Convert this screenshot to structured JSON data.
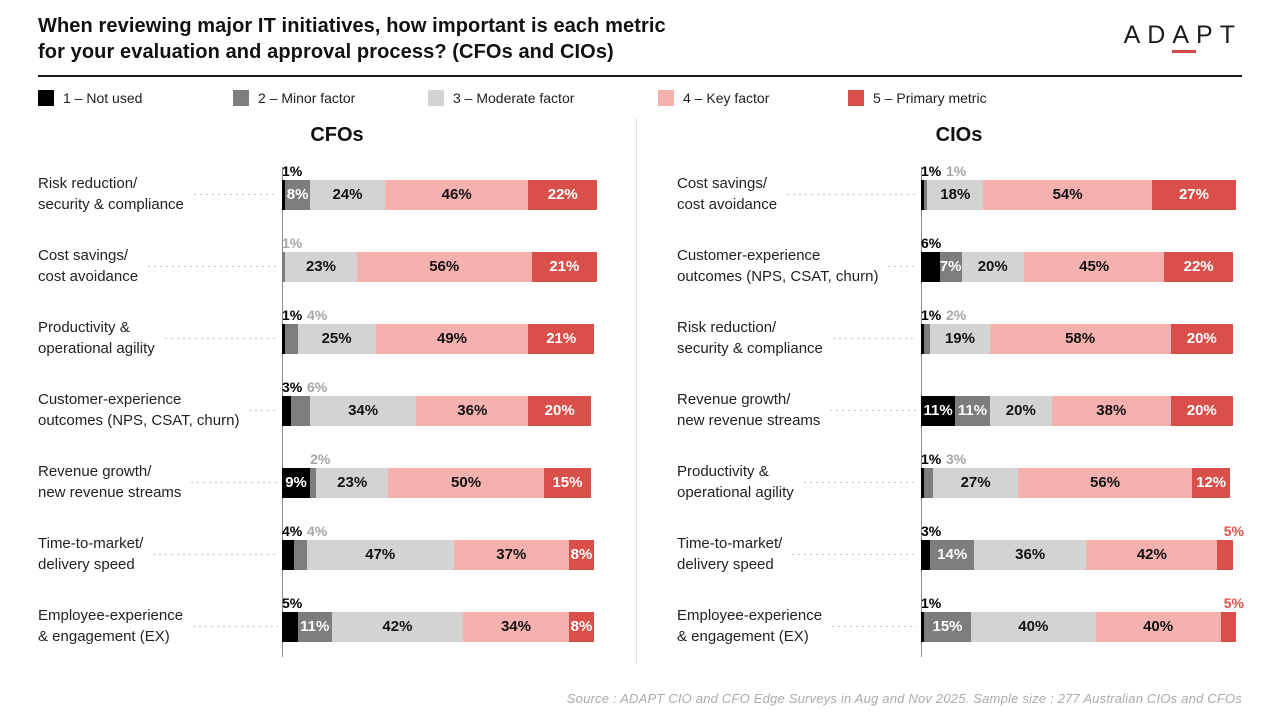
{
  "header": {
    "title_line1": "When reviewing major IT initiatives, how important is each metric",
    "title_line2": "for your evaluation and approval process? (CFOs and CIOs)",
    "logo": {
      "pre": "AD",
      "underlined": "A",
      "post": "PT"
    }
  },
  "footer": {
    "source": "Source : ADAPT CIO and CFO Edge Surveys in Aug and Nov 2025. Sample size : 277 Australian CIOs and CFOs"
  },
  "colors": {
    "not_used": "#000000",
    "minor": "#7d7d7d",
    "moderate": "#d3d3d3",
    "key": "#f5b1ae",
    "primary": "#d9504a",
    "above_label_black": "#000000",
    "above_label_gray": "#a6a6a6",
    "above_label_red": "#dd524c",
    "in_bar_text": [
      "#ffffff",
      "#ffffff",
      "#111111",
      "#111111",
      "#ffffff"
    ]
  },
  "chart_data": {
    "type": "bar",
    "variant": "horizontal-stacked-percent",
    "title": "When reviewing major IT initiatives, how important is each metric for your evaluation and approval process? (CFOs and CIOs)",
    "axis_range_percent": [
      0,
      100
    ],
    "grid": false,
    "legend_position": "top",
    "segment_color_keys": [
      "not_used",
      "minor",
      "moderate",
      "key",
      "primary"
    ],
    "legend": [
      {
        "label": "1 – Not used",
        "color_key": "not_used"
      },
      {
        "label": "2 – Minor factor",
        "color_key": "minor"
      },
      {
        "label": "3 – Moderate factor",
        "color_key": "moderate"
      },
      {
        "label": "4 – Key factor",
        "color_key": "key"
      },
      {
        "label": "5 – Primary metric",
        "color_key": "primary"
      }
    ],
    "panels": [
      {
        "title": "CFOs",
        "rows": [
          {
            "label_line1": "Risk reduction/",
            "label_line2": "security & compliance",
            "values": [
              1,
              8,
              24,
              46,
              22
            ],
            "placements": [
              "above",
              "in",
              "in",
              "in",
              "in"
            ]
          },
          {
            "label_line1": "Cost savings/",
            "label_line2": "cost avoidance",
            "values": [
              0,
              1,
              23,
              56,
              21
            ],
            "placements": [
              "none",
              "above",
              "in",
              "in",
              "in"
            ]
          },
          {
            "label_line1": "Productivity &",
            "label_line2": "operational agility",
            "values": [
              1,
              4,
              25,
              49,
              21
            ],
            "placements": [
              "above",
              "above",
              "in",
              "in",
              "in"
            ]
          },
          {
            "label_line1": "Customer-experience",
            "label_line2": "outcomes (NPS, CSAT, churn)",
            "values": [
              3,
              6,
              34,
              36,
              20
            ],
            "placements": [
              "above",
              "above",
              "in",
              "in",
              "in"
            ]
          },
          {
            "label_line1": "Revenue growth/",
            "label_line2": "new revenue streams",
            "values": [
              9,
              2,
              23,
              50,
              15
            ],
            "placements": [
              "in",
              "above",
              "in",
              "in",
              "in"
            ]
          },
          {
            "label_line1": "Time-to-market/",
            "label_line2": "delivery speed",
            "values": [
              4,
              4,
              47,
              37,
              8
            ],
            "placements": [
              "above",
              "above",
              "in",
              "in",
              "in"
            ]
          },
          {
            "label_line1": "Employee-experience",
            "label_line2": "& engagement (EX)",
            "values": [
              5,
              11,
              42,
              34,
              8
            ],
            "placements": [
              "above",
              "in",
              "in",
              "in",
              "in"
            ]
          }
        ]
      },
      {
        "title": "CIOs",
        "rows": [
          {
            "label_line1": "Cost savings/",
            "label_line2": "cost avoidance",
            "values": [
              1,
              1,
              18,
              54,
              27
            ],
            "placements": [
              "above",
              "above",
              "in",
              "in",
              "in"
            ]
          },
          {
            "label_line1": "Customer-experience",
            "label_line2": "outcomes (NPS, CSAT, churn)",
            "values": [
              6,
              7,
              20,
              45,
              22
            ],
            "placements": [
              "above",
              "in",
              "in",
              "in",
              "in"
            ]
          },
          {
            "label_line1": "Risk reduction/",
            "label_line2": "security & compliance",
            "values": [
              1,
              2,
              19,
              58,
              20
            ],
            "placements": [
              "above",
              "above",
              "in",
              "in",
              "in"
            ]
          },
          {
            "label_line1": "Revenue growth/",
            "label_line2": "new revenue streams",
            "values": [
              11,
              11,
              20,
              38,
              20
            ],
            "placements": [
              "in",
              "in",
              "in",
              "in",
              "in"
            ]
          },
          {
            "label_line1": "Productivity &",
            "label_line2": "operational agility",
            "values": [
              1,
              3,
              27,
              56,
              12
            ],
            "placements": [
              "above",
              "above",
              "in",
              "in",
              "in"
            ]
          },
          {
            "label_line1": "Time-to-market/",
            "label_line2": "delivery speed",
            "values": [
              3,
              14,
              36,
              42,
              5
            ],
            "placements": [
              "above",
              "in",
              "in",
              "in",
              "above-right"
            ]
          },
          {
            "label_line1": "Employee-experience",
            "label_line2": "& engagement (EX)",
            "values": [
              1,
              15,
              40,
              40,
              5
            ],
            "placements": [
              "above",
              "in",
              "in",
              "in",
              "above-right"
            ]
          }
        ]
      }
    ]
  }
}
